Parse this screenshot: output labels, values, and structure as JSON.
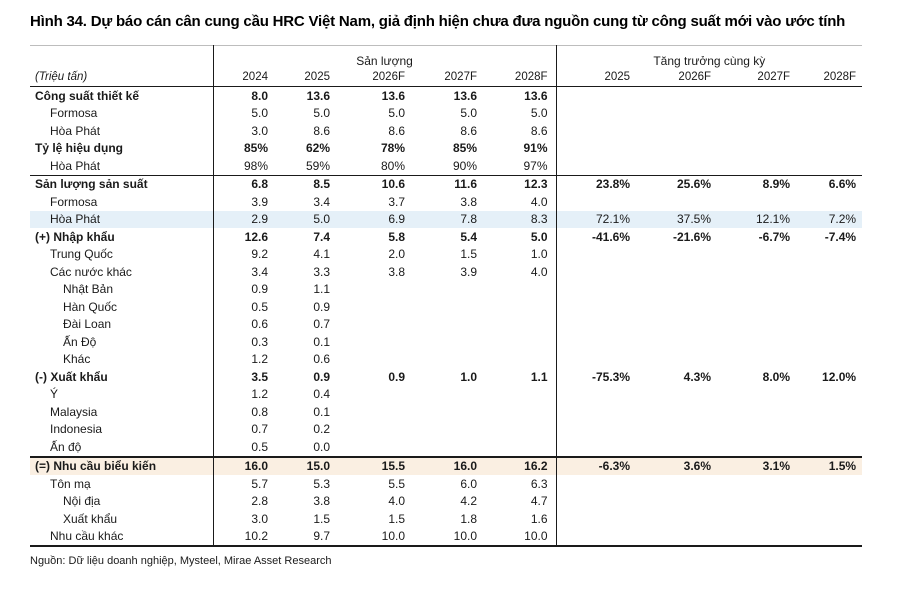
{
  "title": "Hình 34. Dự báo cán cân cung cầu HRC Việt Nam, giả định hiện chưa đưa nguồn cung từ công suất mới vào ước tính",
  "source": "Nguồn: Dữ liệu doanh nghiệp, Mysteel, Mirae Asset Research",
  "colors": {
    "highlight_blue": "#e5f0f8",
    "highlight_tan": "#faefe2",
    "rule_dark": "#1a1a1a",
    "rule_light": "#bdbdbd"
  },
  "table": {
    "unit_label": "(Triệu tấn)",
    "group_headers": [
      {
        "label": "Sản lượng",
        "span": 5
      },
      {
        "label": "Tăng trưởng cùng kỳ",
        "span": 4
      }
    ],
    "columns": [
      "2024",
      "2025",
      "2026F",
      "2027F",
      "2028F",
      "2025",
      "2026F",
      "2027F",
      "2028F"
    ],
    "rows": [
      {
        "label": "Công suất thiết kế",
        "indent": 0,
        "bold": true,
        "values": [
          "8.0",
          "13.6",
          "13.6",
          "13.6",
          "13.6",
          "",
          "",
          "",
          ""
        ]
      },
      {
        "label": "Formosa",
        "indent": 1,
        "bold": false,
        "values": [
          "5.0",
          "5.0",
          "5.0",
          "5.0",
          "5.0",
          "",
          "",
          "",
          ""
        ]
      },
      {
        "label": "Hòa Phát",
        "indent": 1,
        "bold": false,
        "values": [
          "3.0",
          "8.6",
          "8.6",
          "8.6",
          "8.6",
          "",
          "",
          "",
          ""
        ]
      },
      {
        "label": "Tỷ lệ hiệu dụng",
        "indent": 0,
        "bold": true,
        "values": [
          "85%",
          "62%",
          "78%",
          "85%",
          "91%",
          "",
          "",
          "",
          ""
        ]
      },
      {
        "label": "Hòa Phát",
        "indent": 1,
        "bold": false,
        "values": [
          "98%",
          "59%",
          "80%",
          "90%",
          "97%",
          "",
          "",
          "",
          ""
        ]
      },
      {
        "label": "Sản lượng sản suất",
        "indent": 0,
        "bold": true,
        "border": "thin",
        "values": [
          "6.8",
          "8.5",
          "10.6",
          "11.6",
          "12.3",
          "23.8%",
          "25.6%",
          "8.9%",
          "6.6%"
        ]
      },
      {
        "label": "Formosa",
        "indent": 1,
        "bold": false,
        "values": [
          "3.9",
          "3.4",
          "3.7",
          "3.8",
          "4.0",
          "",
          "",
          "",
          ""
        ]
      },
      {
        "label": "Hòa Phát",
        "indent": 1,
        "bold": false,
        "highlight": "blue",
        "values": [
          "2.9",
          "5.0",
          "6.9",
          "7.8",
          "8.3",
          "72.1%",
          "37.5%",
          "12.1%",
          "7.2%"
        ]
      },
      {
        "label": "(+) Nhập khẩu",
        "indent": 0,
        "bold": true,
        "values": [
          "12.6",
          "7.4",
          "5.8",
          "5.4",
          "5.0",
          "-41.6%",
          "-21.6%",
          "-6.7%",
          "-7.4%"
        ]
      },
      {
        "label": "Trung Quốc",
        "indent": 1,
        "bold": false,
        "values": [
          "9.2",
          "4.1",
          "2.0",
          "1.5",
          "1.0",
          "",
          "",
          "",
          ""
        ]
      },
      {
        "label": "Các nước khác",
        "indent": 1,
        "bold": false,
        "values": [
          "3.4",
          "3.3",
          "3.8",
          "3.9",
          "4.0",
          "",
          "",
          "",
          ""
        ]
      },
      {
        "label": "Nhật Bản",
        "indent": 2,
        "bold": false,
        "values": [
          "0.9",
          "1.1",
          "",
          "",
          "",
          "",
          "",
          "",
          ""
        ]
      },
      {
        "label": "Hàn Quốc",
        "indent": 2,
        "bold": false,
        "values": [
          "0.5",
          "0.9",
          "",
          "",
          "",
          "",
          "",
          "",
          ""
        ]
      },
      {
        "label": "Đài Loan",
        "indent": 2,
        "bold": false,
        "values": [
          "0.6",
          "0.7",
          "",
          "",
          "",
          "",
          "",
          "",
          ""
        ]
      },
      {
        "label": "Ấn Độ",
        "indent": 2,
        "bold": false,
        "values": [
          "0.3",
          "0.1",
          "",
          "",
          "",
          "",
          "",
          "",
          ""
        ]
      },
      {
        "label": "Khác",
        "indent": 2,
        "bold": false,
        "values": [
          "1.2",
          "0.6",
          "",
          "",
          "",
          "",
          "",
          "",
          ""
        ]
      },
      {
        "label": "(-) Xuất khẩu",
        "indent": 0,
        "bold": true,
        "values": [
          "3.5",
          "0.9",
          "0.9",
          "1.0",
          "1.1",
          "-75.3%",
          "4.3%",
          "8.0%",
          "12.0%"
        ]
      },
      {
        "label": "Ý",
        "indent": 1,
        "bold": false,
        "values": [
          "1.2",
          "0.4",
          "",
          "",
          "",
          "",
          "",
          "",
          ""
        ]
      },
      {
        "label": "Malaysia",
        "indent": 1,
        "bold": false,
        "values": [
          "0.8",
          "0.1",
          "",
          "",
          "",
          "",
          "",
          "",
          ""
        ]
      },
      {
        "label": "Indonesia",
        "indent": 1,
        "bold": false,
        "values": [
          "0.7",
          "0.2",
          "",
          "",
          "",
          "",
          "",
          "",
          ""
        ]
      },
      {
        "label": "Ấn độ",
        "indent": 1,
        "bold": false,
        "values": [
          "0.5",
          "0.0",
          "",
          "",
          "",
          "",
          "",
          "",
          ""
        ]
      },
      {
        "label": "(=) Nhu cầu biểu kiến",
        "indent": 0,
        "bold": true,
        "border": "thick",
        "highlight": "tan",
        "values": [
          "16.0",
          "15.0",
          "15.5",
          "16.0",
          "16.2",
          "-6.3%",
          "3.6%",
          "3.1%",
          "1.5%"
        ]
      },
      {
        "label": "Tôn mạ",
        "indent": 1,
        "bold": false,
        "values": [
          "5.7",
          "5.3",
          "5.5",
          "6.0",
          "6.3",
          "",
          "",
          "",
          ""
        ]
      },
      {
        "label": "Nội địa",
        "indent": 2,
        "bold": false,
        "values": [
          "2.8",
          "3.8",
          "4.0",
          "4.2",
          "4.7",
          "",
          "",
          "",
          ""
        ]
      },
      {
        "label": "Xuất khẩu",
        "indent": 2,
        "bold": false,
        "values": [
          "3.0",
          "1.5",
          "1.5",
          "1.8",
          "1.6",
          "",
          "",
          "",
          ""
        ]
      },
      {
        "label": "Nhu cầu khác",
        "indent": 1,
        "bold": false,
        "values": [
          "10.2",
          "9.7",
          "10.0",
          "10.0",
          "10.0",
          "",
          "",
          "",
          ""
        ]
      }
    ]
  }
}
